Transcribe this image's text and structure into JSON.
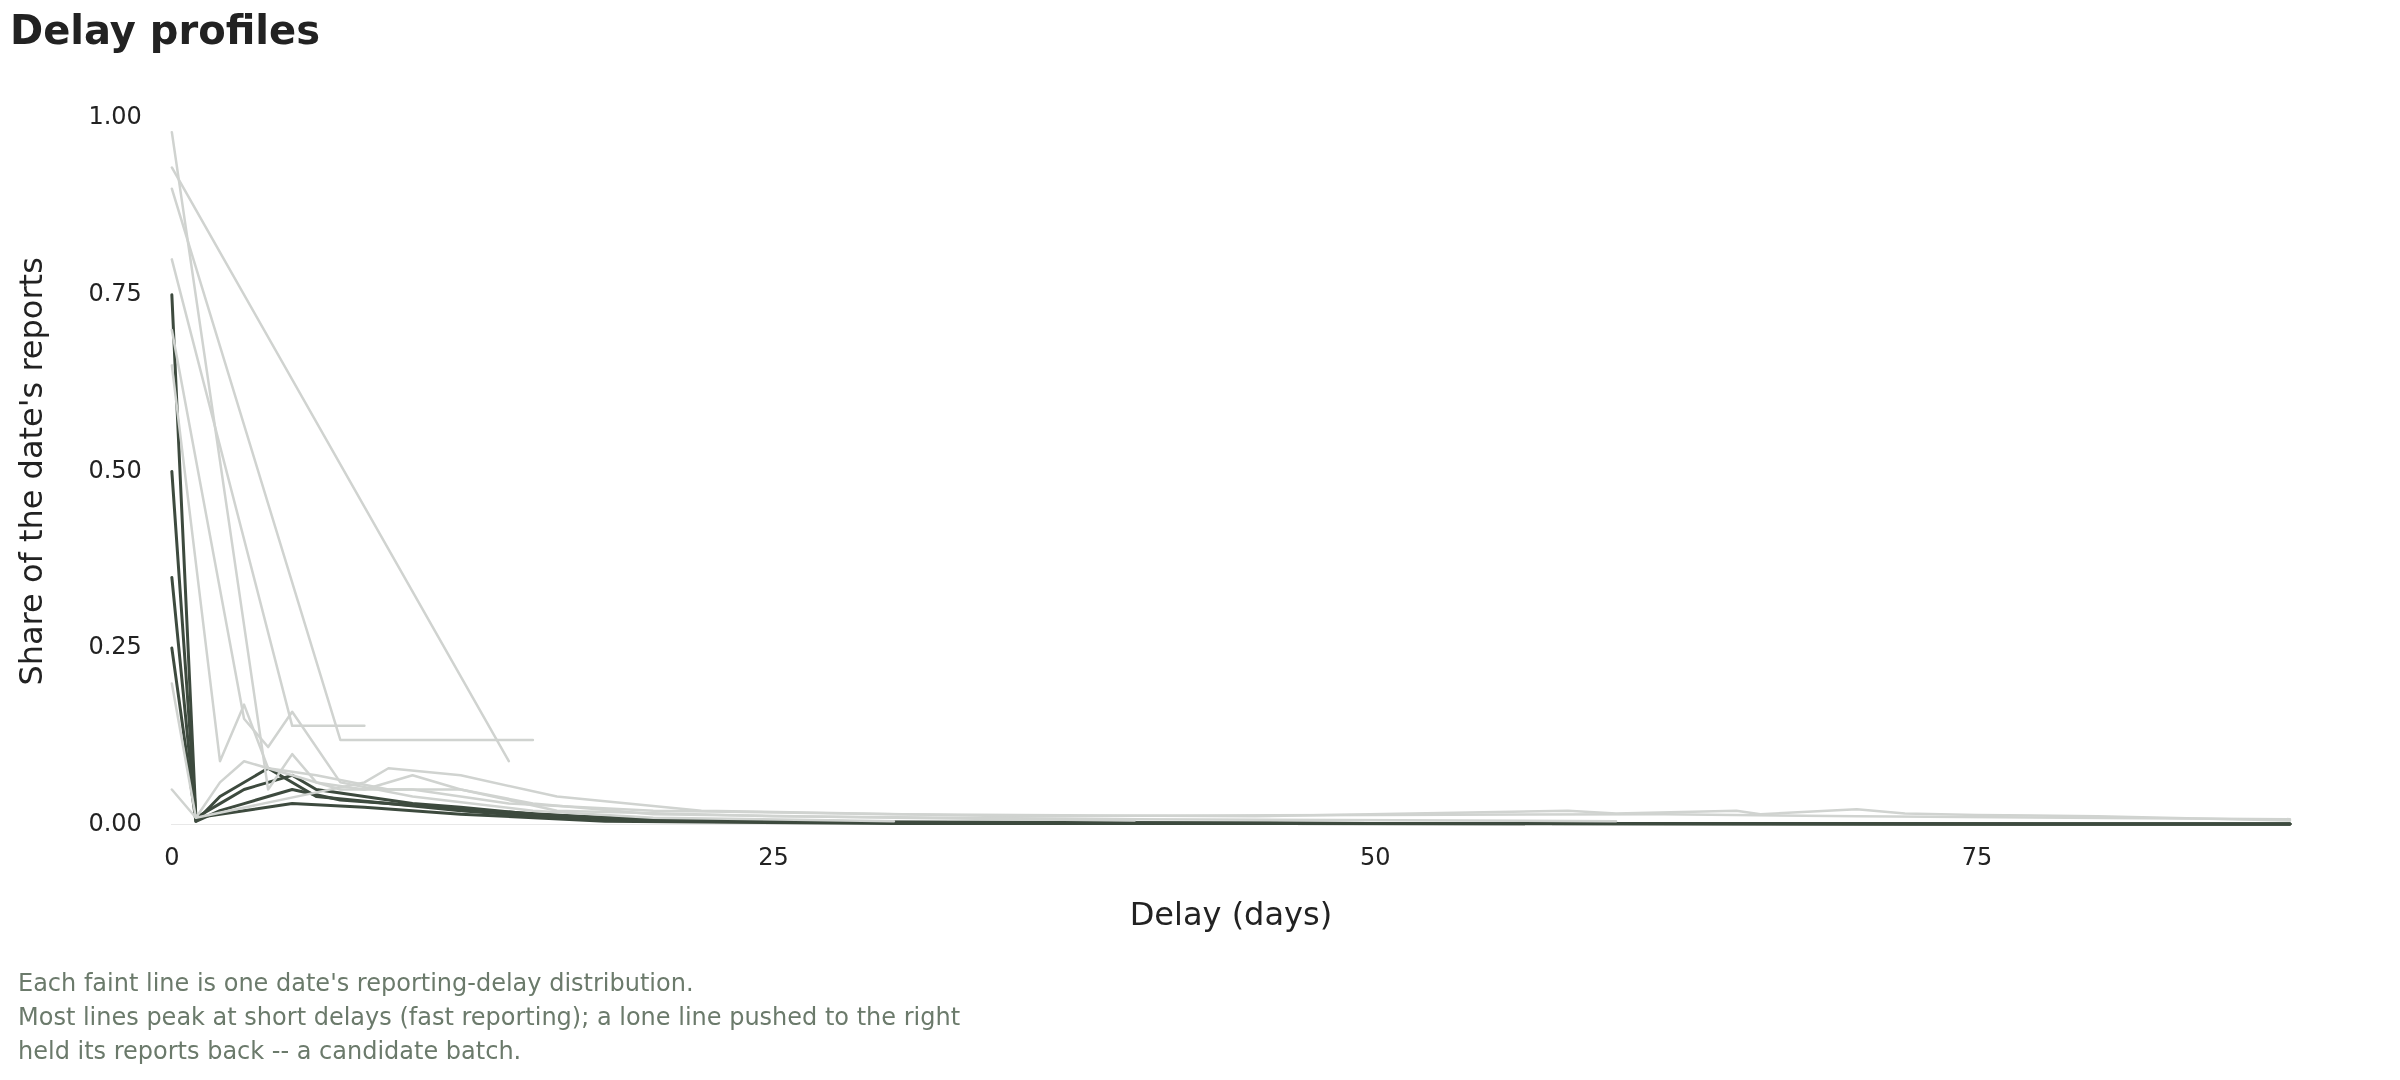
{
  "chart_data": {
    "type": "line",
    "title": "Delay profiles",
    "xlabel": "Delay (days)",
    "ylabel": "Share of the date's reports",
    "annotations": [
      "Each faint line is one date's reporting-delay distribution.",
      "Most lines peak at short delays (fast reporting); a lone line pushed to the right",
      "held its reports back -- a candidate batch."
    ],
    "xlim": [
      0,
      88
    ],
    "xticks": [
      0,
      25,
      50,
      75
    ],
    "ylim": [
      0,
      1
    ],
    "yticks": [
      {
        "value": 0,
        "label": "0.00"
      },
      {
        "value": 0.25,
        "label": "0.25"
      },
      {
        "value": 0.5,
        "label": "0.50"
      },
      {
        "value": 0.75,
        "label": "0.75"
      },
      {
        "value": 1,
        "label": "1.00"
      }
    ],
    "grid": false,
    "legend": false,
    "marker": "none",
    "line_style": "solid",
    "series": [
      {
        "color": "#d0d3d0",
        "x": [
          0,
          14
        ],
        "values": [
          0.93,
          0.09
        ]
      },
      {
        "color": "#d0d3d0",
        "x": [
          0,
          7,
          15
        ],
        "values": [
          0.9,
          0.12,
          0.12
        ]
      },
      {
        "color": "#d0d3d0",
        "x": [
          0,
          5,
          8
        ],
        "values": [
          0.8,
          0.14,
          0.14
        ]
      },
      {
        "color": "#d0d3d0",
        "x": [
          0,
          4,
          5,
          6,
          8,
          10,
          12,
          15,
          20,
          30,
          40
        ],
        "values": [
          0.98,
          0.05,
          0.1,
          0.06,
          0.05,
          0.07,
          0.05,
          0.03,
          0.015,
          0.01,
          0.006
        ]
      },
      {
        "color": "#d0d3d0",
        "x": [
          0,
          3,
          4,
          5,
          7,
          10,
          15,
          20,
          30
        ],
        "values": [
          0.7,
          0.15,
          0.11,
          0.16,
          0.06,
          0.04,
          0.02,
          0.01,
          0.005
        ]
      },
      {
        "color": "#d0d3d0",
        "x": [
          0,
          2,
          3,
          4,
          6,
          9,
          12,
          16,
          25,
          40,
          60
        ],
        "values": [
          0.65,
          0.09,
          0.17,
          0.08,
          0.07,
          0.05,
          0.05,
          0.02,
          0.012,
          0.008,
          0.005
        ]
      },
      {
        "color": "#d0d3d0",
        "x": [
          0,
          1,
          2,
          3,
          5,
          7,
          10,
          14,
          20,
          30,
          45,
          58,
          60,
          65,
          66,
          70,
          72,
          75,
          80,
          88
        ],
        "values": [
          0.2,
          0.01,
          0.06,
          0.09,
          0.07,
          0.05,
          0.05,
          0.03,
          0.02,
          0.015,
          0.012,
          0.02,
          0.016,
          0.02,
          0.015,
          0.022,
          0.016,
          0.014,
          0.012,
          0.006
        ]
      },
      {
        "color": "#d0d3d0",
        "x": [
          0,
          1,
          8,
          9,
          12,
          16,
          22,
          35,
          50,
          62,
          70,
          88
        ],
        "values": [
          0.05,
          0.01,
          0.06,
          0.08,
          0.07,
          0.04,
          0.02,
          0.012,
          0.014,
          0.015,
          0.012,
          0.008
        ]
      },
      {
        "color": "#3d4a3e",
        "x": [
          0,
          1,
          2,
          3,
          4,
          5,
          6,
          8,
          10,
          12,
          15,
          20,
          30,
          50,
          88
        ],
        "values": [
          0.5,
          0.01,
          0.03,
          0.05,
          0.06,
          0.07,
          0.05,
          0.04,
          0.03,
          0.025,
          0.015,
          0.008,
          0.004,
          0.002,
          0.001
        ]
      },
      {
        "color": "#3d4a3e",
        "x": [
          0,
          1,
          2,
          3,
          4,
          5,
          7,
          9,
          12,
          15,
          20,
          30,
          50,
          88
        ],
        "values": [
          0.35,
          0.005,
          0.02,
          0.03,
          0.04,
          0.05,
          0.035,
          0.03,
          0.02,
          0.012,
          0.006,
          0.003,
          0.002,
          0.001
        ]
      },
      {
        "color": "#3d4a3e",
        "x": [
          0,
          1,
          3,
          5,
          8,
          12,
          18,
          30,
          88
        ],
        "values": [
          0.75,
          0.01,
          0.02,
          0.03,
          0.025,
          0.015,
          0.005,
          0.002,
          0.001
        ]
      },
      {
        "color": "#3d4a3e",
        "x": [
          0,
          1,
          2,
          4,
          6,
          9,
          13,
          20,
          40,
          88
        ],
        "values": [
          0.25,
          0.005,
          0.04,
          0.08,
          0.04,
          0.03,
          0.02,
          0.005,
          0.002,
          0.001
        ]
      }
    ]
  }
}
